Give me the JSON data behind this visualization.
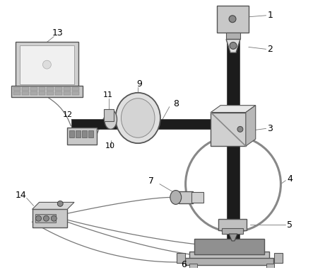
{
  "background_color": "#ffffff",
  "fig_width": 4.43,
  "fig_height": 3.81,
  "dpi": 100,
  "rod_color": "#1a1a1a",
  "gray_light": "#cccccc",
  "gray_mid": "#aaaaaa",
  "gray_dark": "#888888",
  "wire_color": "#777777",
  "ec_color": "#555555"
}
